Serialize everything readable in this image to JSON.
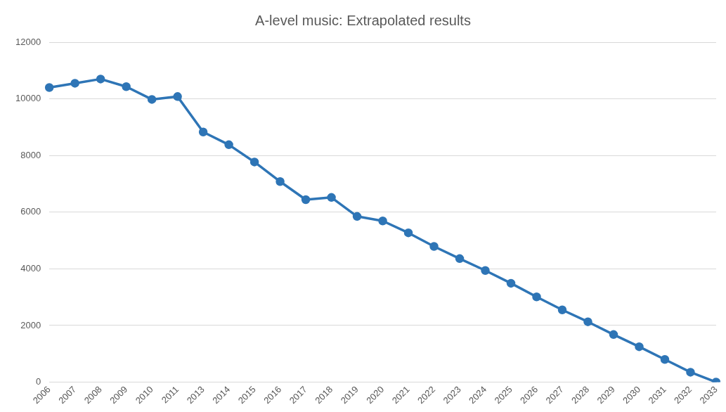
{
  "chart_data": {
    "type": "line",
    "title": "A-level music: Extrapolated results",
    "categories": [
      "2006",
      "2007",
      "2008",
      "2009",
      "2010",
      "2011",
      "2013",
      "2014",
      "2015",
      "2016",
      "2017",
      "2018",
      "2019",
      "2020",
      "2021",
      "2022",
      "2023",
      "2024",
      "2025",
      "2026",
      "2027",
      "2028",
      "2029",
      "2030",
      "2031",
      "2032",
      "2033"
    ],
    "series": [
      {
        "color": "#2e75b6",
        "values": [
          10400,
          10550,
          10700,
          10430,
          9980,
          10080,
          8830,
          8380,
          7770,
          7080,
          6440,
          6520,
          5850,
          5690,
          5270,
          4790,
          4360,
          3940,
          3490,
          3010,
          2550,
          2130,
          1680,
          1250,
          800,
          350,
          0
        ]
      }
    ],
    "ylim": [
      0,
      12000
    ],
    "yticks": [
      0,
      2000,
      4000,
      6000,
      8000,
      10000,
      12000
    ],
    "grid": "y",
    "legend": false,
    "marker": "circle",
    "line_style": "solid"
  }
}
